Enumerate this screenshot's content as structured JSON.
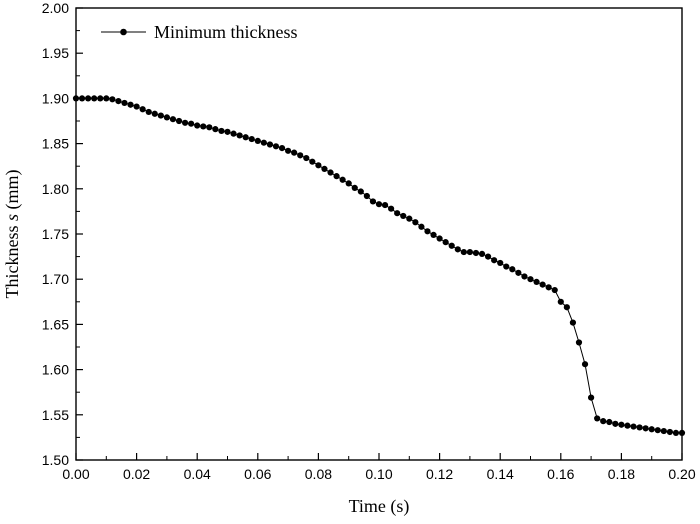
{
  "chart_data": {
    "type": "line",
    "xlabel": "Time (s)",
    "ylabel_prefix": "Thickness ",
    "ylabel_var": "s",
    "ylabel_unit": " (mm)",
    "xlim": [
      0.0,
      0.2
    ],
    "ylim": [
      1.5,
      2.0
    ],
    "x_ticks": [
      "0.00",
      "0.02",
      "0.04",
      "0.06",
      "0.08",
      "0.10",
      "0.12",
      "0.14",
      "0.16",
      "0.18",
      "0.20"
    ],
    "y_ticks": [
      "1.50",
      "1.55",
      "1.60",
      "1.65",
      "1.70",
      "1.75",
      "1.80",
      "1.85",
      "1.90",
      "1.95",
      "2.00"
    ],
    "grid": false,
    "legend_position": "top-left",
    "series": [
      {
        "name": "Minimum thickness",
        "color": "#000000",
        "x": [
          0.0,
          0.002,
          0.004,
          0.006,
          0.008,
          0.01,
          0.012,
          0.014,
          0.016,
          0.018,
          0.02,
          0.022,
          0.024,
          0.026,
          0.028,
          0.03,
          0.032,
          0.034,
          0.036,
          0.038,
          0.04,
          0.042,
          0.044,
          0.046,
          0.048,
          0.05,
          0.052,
          0.054,
          0.056,
          0.058,
          0.06,
          0.062,
          0.064,
          0.066,
          0.068,
          0.07,
          0.072,
          0.074,
          0.076,
          0.078,
          0.08,
          0.082,
          0.084,
          0.086,
          0.088,
          0.09,
          0.092,
          0.094,
          0.096,
          0.098,
          0.1,
          0.102,
          0.104,
          0.106,
          0.108,
          0.11,
          0.112,
          0.114,
          0.116,
          0.118,
          0.12,
          0.122,
          0.124,
          0.126,
          0.128,
          0.13,
          0.132,
          0.134,
          0.136,
          0.138,
          0.14,
          0.142,
          0.144,
          0.146,
          0.148,
          0.15,
          0.152,
          0.154,
          0.156,
          0.158,
          0.16,
          0.162,
          0.164,
          0.166,
          0.168,
          0.17,
          0.172,
          0.174,
          0.176,
          0.178,
          0.18,
          0.182,
          0.184,
          0.186,
          0.188,
          0.19,
          0.192,
          0.194,
          0.196,
          0.198,
          0.2
        ],
        "y": [
          1.9,
          1.9,
          1.9,
          1.9,
          1.9,
          1.9,
          1.899,
          1.897,
          1.895,
          1.893,
          1.891,
          1.888,
          1.885,
          1.883,
          1.881,
          1.879,
          1.877,
          1.875,
          1.873,
          1.872,
          1.87,
          1.869,
          1.868,
          1.866,
          1.864,
          1.863,
          1.861,
          1.859,
          1.857,
          1.855,
          1.853,
          1.851,
          1.849,
          1.847,
          1.845,
          1.842,
          1.84,
          1.837,
          1.834,
          1.83,
          1.826,
          1.822,
          1.818,
          1.814,
          1.81,
          1.806,
          1.801,
          1.797,
          1.792,
          1.786,
          1.783,
          1.782,
          1.778,
          1.773,
          1.77,
          1.767,
          1.763,
          1.758,
          1.753,
          1.749,
          1.745,
          1.741,
          1.737,
          1.733,
          1.73,
          1.73,
          1.729,
          1.728,
          1.725,
          1.721,
          1.718,
          1.714,
          1.711,
          1.707,
          1.703,
          1.7,
          1.697,
          1.694,
          1.691,
          1.688,
          1.675,
          1.669,
          1.652,
          1.63,
          1.606,
          1.569,
          1.546,
          1.543,
          1.542,
          1.54,
          1.539,
          1.538,
          1.537,
          1.536,
          1.535,
          1.534,
          1.533,
          1.532,
          1.531,
          1.53,
          1.53
        ]
      }
    ]
  }
}
